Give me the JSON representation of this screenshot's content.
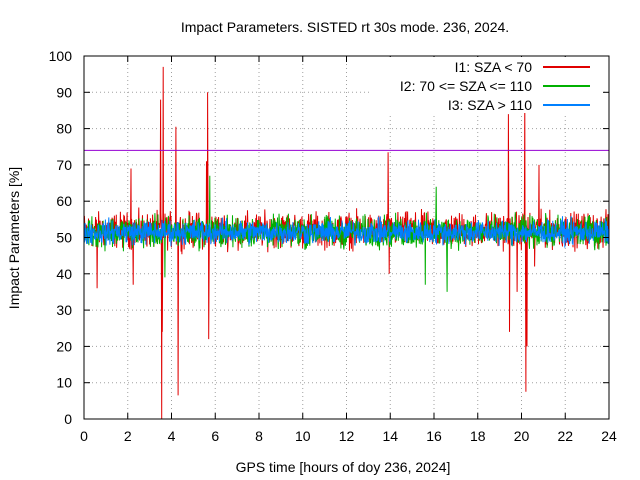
{
  "chart_data": {
    "type": "line",
    "title": "Impact Parameters. SISTED rt 30s mode. 236, 2024.",
    "xlabel": "GPS time [hours of doy 236, 2024]",
    "ylabel": "Impact Parameters [%]",
    "xlim": [
      0,
      24
    ],
    "ylim": [
      0,
      100
    ],
    "xticks": [
      0,
      2,
      4,
      6,
      8,
      10,
      12,
      14,
      16,
      18,
      20,
      22,
      24
    ],
    "yticks": [
      0,
      10,
      20,
      30,
      40,
      50,
      60,
      70,
      80,
      90,
      100
    ],
    "grid": true,
    "legend_position": "top-right",
    "reference_line": {
      "y": 74,
      "color": "#9400d3"
    },
    "series": [
      {
        "name": "I1: SZA < 70",
        "color": "#e00000",
        "baseline": 52,
        "noise": 5,
        "range": [
          0,
          24
        ],
        "spikes": [
          [
            3.55,
            0
          ],
          [
            3.62,
            97
          ],
          [
            3.58,
            24
          ],
          [
            3.5,
            88
          ],
          [
            4.2,
            80.5
          ],
          [
            4.3,
            6.5
          ],
          [
            5.65,
            90
          ],
          [
            5.7,
            22
          ],
          [
            5.6,
            71
          ],
          [
            0.6,
            36
          ],
          [
            2.15,
            69
          ],
          [
            2.25,
            37
          ],
          [
            13.9,
            73.5
          ],
          [
            13.95,
            40
          ],
          [
            19.4,
            84
          ],
          [
            19.45,
            24
          ],
          [
            19.8,
            35
          ],
          [
            20.15,
            88
          ],
          [
            20.2,
            7.5
          ],
          [
            20.25,
            20
          ],
          [
            20.8,
            70
          ],
          [
            20.6,
            42
          ]
        ]
      },
      {
        "name": "I2: 70 <= SZA <= 110",
        "color": "#00b000",
        "baseline": 51.5,
        "noise": 4.5,
        "range": [
          0,
          24
        ],
        "spikes": [
          [
            5.75,
            67
          ],
          [
            16.1,
            64
          ],
          [
            15.6,
            37
          ],
          [
            16.6,
            35
          ],
          [
            3.7,
            39
          ]
        ]
      },
      {
        "name": "I3: SZA > 110",
        "color": "#0080ff",
        "baseline": 51.5,
        "noise": 3.5,
        "range": [
          0,
          24
        ],
        "spikes": []
      }
    ]
  }
}
